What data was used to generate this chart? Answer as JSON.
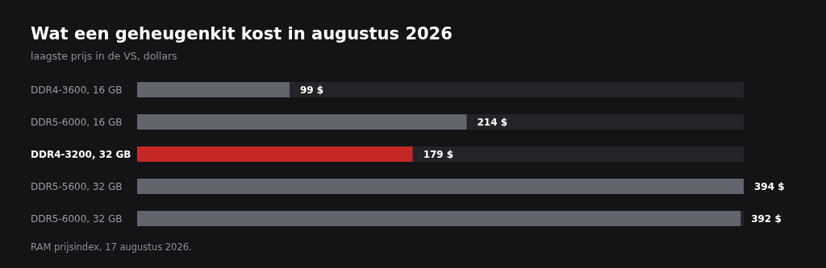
{
  "chart_data": {
    "type": "bar",
    "orientation": "horizontal",
    "title": "Wat een geheugenkit kost in augustus 2026",
    "subtitle": "laagste prijs in de VS, dollars",
    "categories": [
      "DDR4-3600, 16 GB",
      "DDR5-6000, 16 GB",
      "DDR4-3200, 32 GB",
      "DDR5-5600, 32 GB",
      "DDR5-6000, 32 GB"
    ],
    "values": [
      99,
      214,
      179,
      394,
      392
    ],
    "colors": [
      "#62656d",
      "#62656d",
      "#c42826",
      "#62656d",
      "#62656d"
    ],
    "value_labels": [
      "99 $",
      "214 $",
      "179 $",
      "394 $",
      "392 $"
    ],
    "annotations": [
      "RAM prijsindex, 17 augustus 2026."
    ]
  }
}
